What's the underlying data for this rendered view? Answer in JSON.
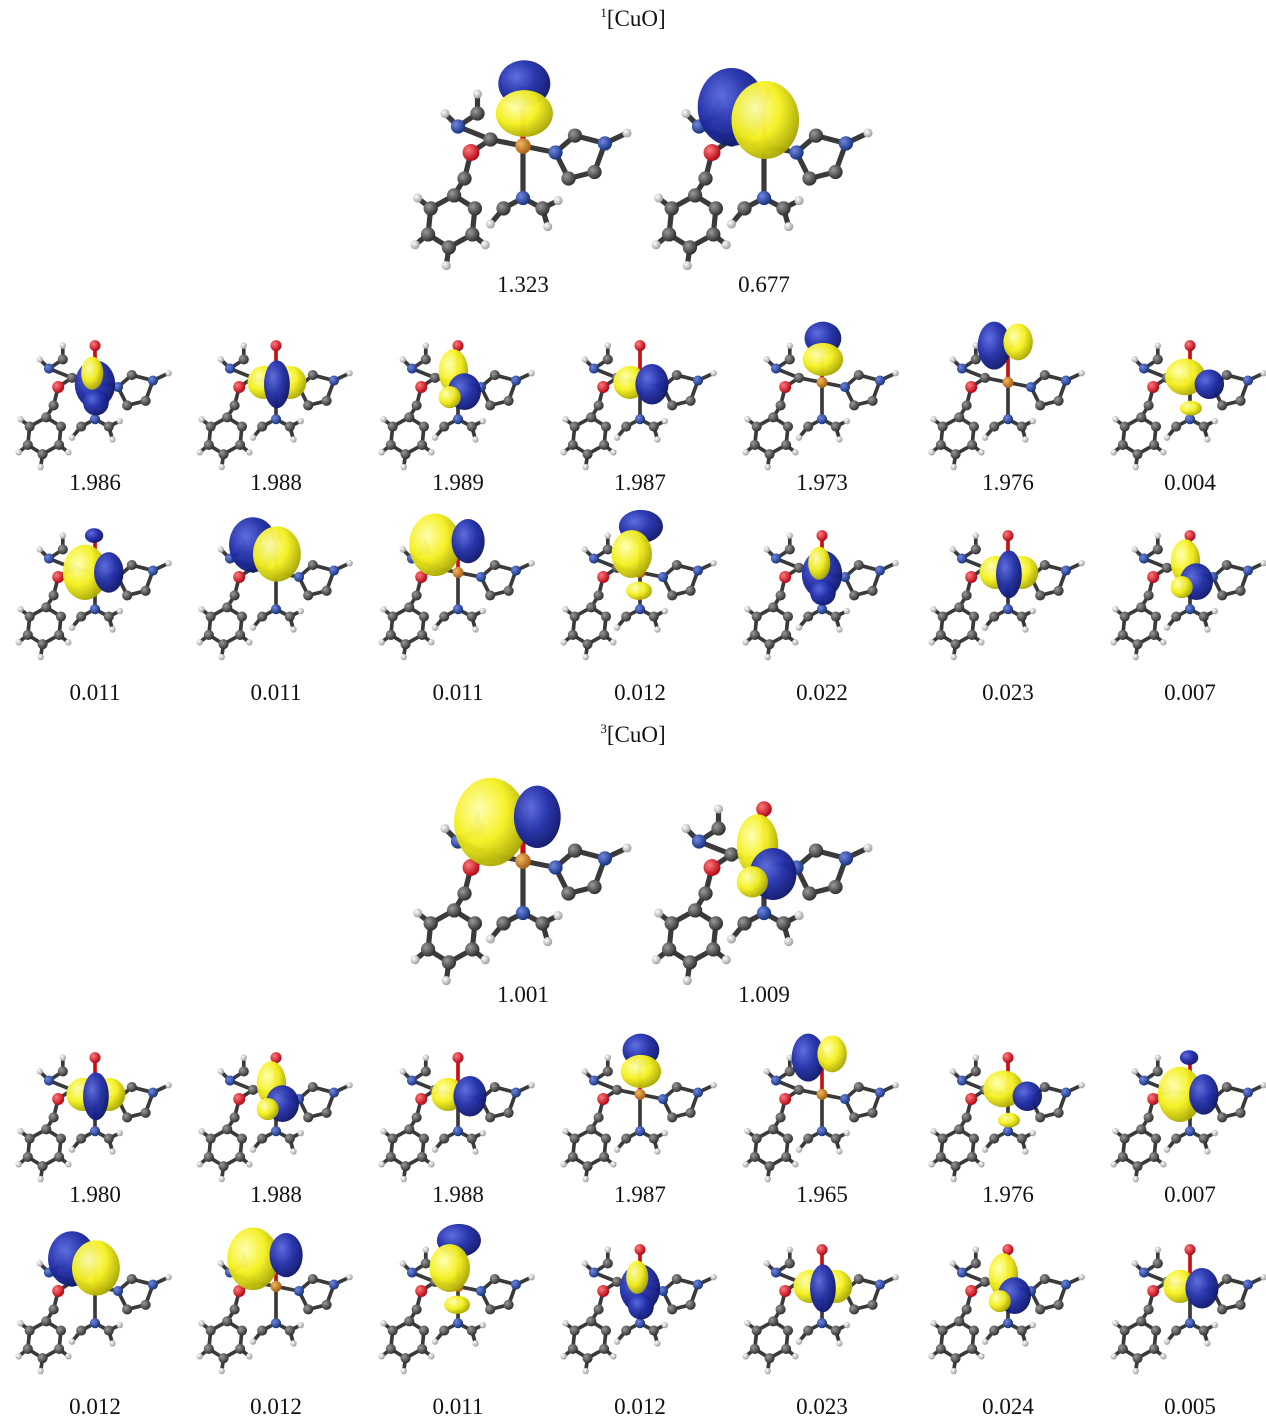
{
  "sections": [
    {
      "title": {
        "superscript": "1",
        "text": "[CuO]"
      },
      "main": [
        "1.323",
        "0.677"
      ],
      "rows": [
        [
          "1.986",
          "1.988",
          "1.989",
          "1.987",
          "1.973",
          "1.976",
          "0.004"
        ],
        [
          "0.011",
          "0.011",
          "0.011",
          "0.012",
          "0.022",
          "0.023",
          "0.007"
        ]
      ]
    },
    {
      "title": {
        "superscript": "3",
        "text": "[CuO]"
      },
      "main": [
        "1.001",
        "1.009"
      ],
      "rows": [
        [
          "1.980",
          "1.988",
          "1.988",
          "1.987",
          "1.965",
          "1.976",
          "0.007"
        ],
        [
          "0.012",
          "0.012",
          "0.011",
          "0.012",
          "0.023",
          "0.024",
          "0.005"
        ]
      ]
    }
  ]
}
